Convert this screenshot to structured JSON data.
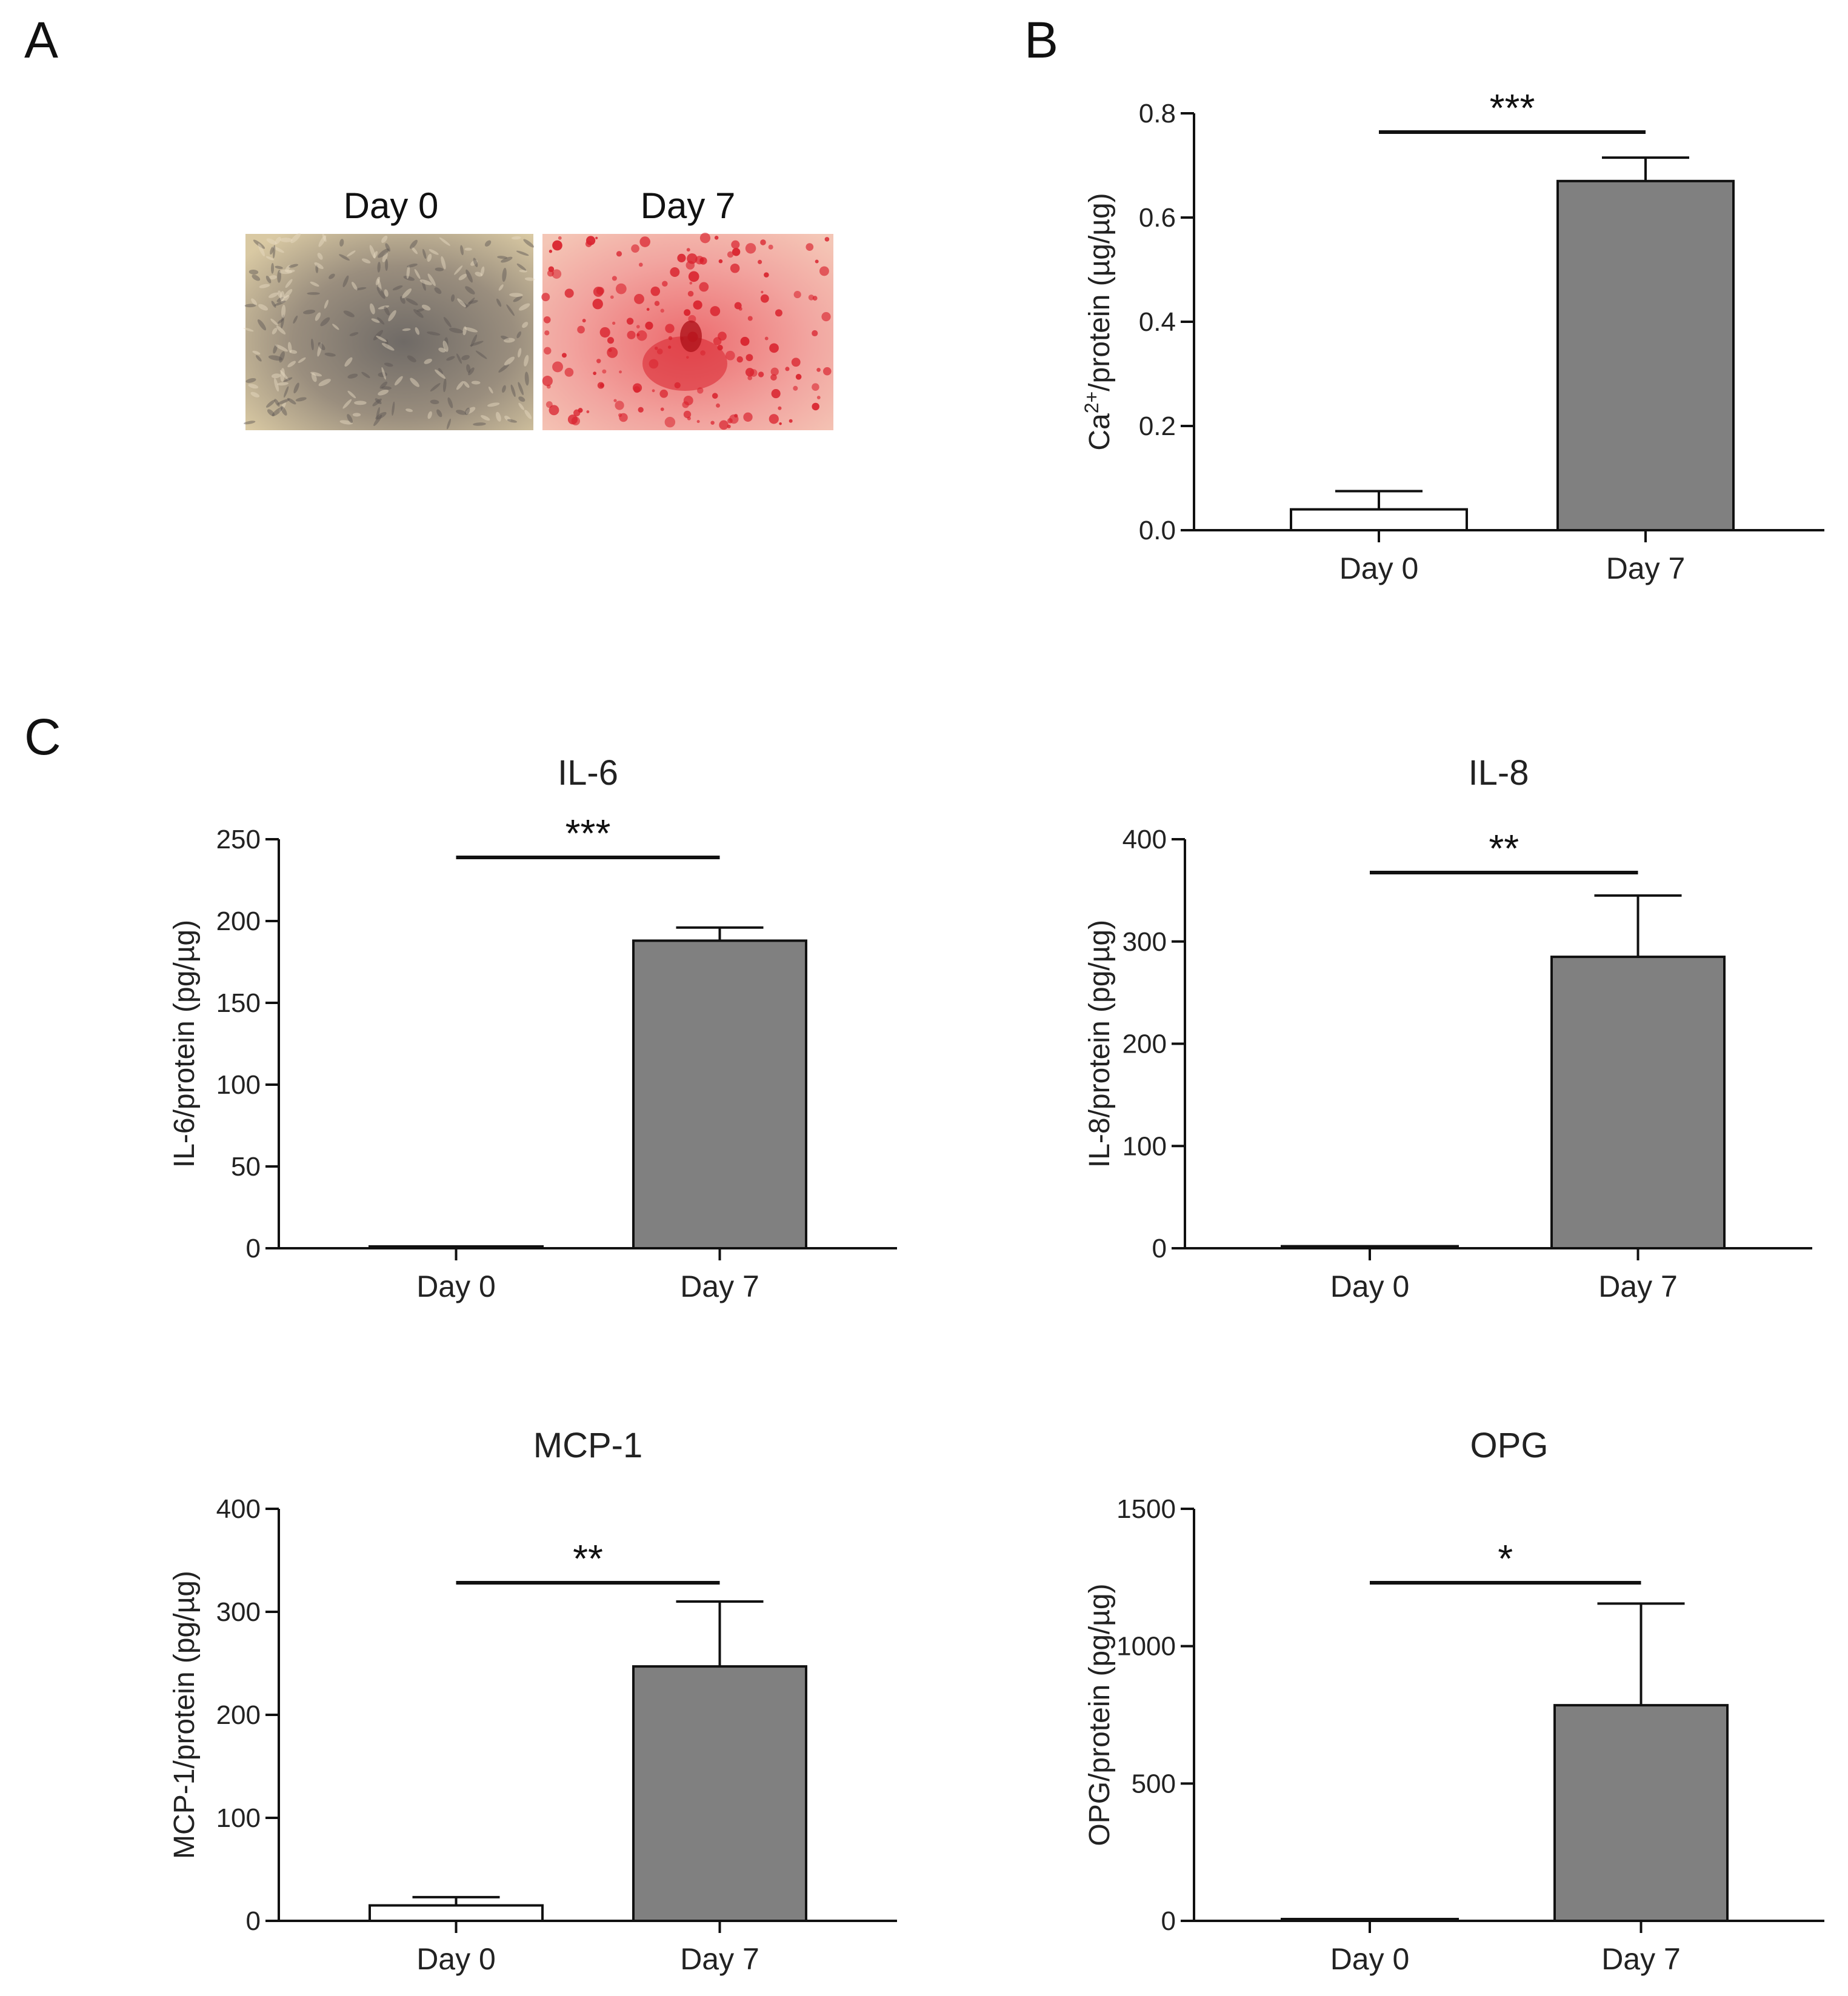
{
  "panels": {
    "a": {
      "letter": "A",
      "label_left": "Day 0",
      "label_right": "Day 7"
    },
    "b": {
      "letter": "B"
    },
    "c": {
      "letter": "C"
    }
  },
  "colors": {
    "day0_fill": "#ffffff",
    "day7_fill": "#808080",
    "stroke": "#111111",
    "stain_red": "#d9232e",
    "plate_beige": "#c8b89a"
  },
  "chart_data": [
    {
      "id": "ca",
      "type": "bar",
      "title": "",
      "ylabel_main": "Ca",
      "ylabel_sup": "2+",
      "ylabel_rest": "/protein (µg/µg)",
      "categories": [
        "Day 0",
        "Day 7"
      ],
      "values": [
        0.04,
        0.67
      ],
      "errors": [
        0.035,
        0.045
      ],
      "ylim": [
        0,
        0.8
      ],
      "yticks": [
        "0.0",
        "0.2",
        "0.4",
        "0.6",
        "0.8"
      ],
      "significance": "***"
    },
    {
      "id": "il6",
      "type": "bar",
      "title": "IL-6",
      "ylabel": "IL-6/protein (pg/µg)",
      "categories": [
        "Day 0",
        "Day 7"
      ],
      "values": [
        0,
        188
      ],
      "errors": [
        0,
        8
      ],
      "ylim": [
        0,
        250
      ],
      "yticks": [
        "0",
        "50",
        "100",
        "150",
        "200",
        "250"
      ],
      "significance": "***"
    },
    {
      "id": "il8",
      "type": "bar",
      "title": "IL-8",
      "ylabel": "IL-8/protein (pg/µg)",
      "categories": [
        "Day 0",
        "Day 7"
      ],
      "values": [
        2,
        285
      ],
      "errors": [
        0,
        60
      ],
      "ylim": [
        0,
        400
      ],
      "yticks": [
        "0",
        "100",
        "200",
        "300",
        "400"
      ],
      "significance": "**"
    },
    {
      "id": "mcp1",
      "type": "bar",
      "title": "MCP-1",
      "ylabel": "MCP-1/protein (pg/µg)",
      "categories": [
        "Day 0",
        "Day 7"
      ],
      "values": [
        15,
        247
      ],
      "errors": [
        8,
        63
      ],
      "ylim": [
        0,
        400
      ],
      "yticks": [
        "0",
        "100",
        "200",
        "300",
        "400"
      ],
      "significance": "**"
    },
    {
      "id": "opg",
      "type": "bar",
      "title": "OPG",
      "ylabel": "OPG/protein (pg/µg)",
      "categories": [
        "Day 0",
        "Day 7"
      ],
      "values": [
        0,
        785
      ],
      "errors": [
        0,
        370
      ],
      "ylim": [
        0,
        1500
      ],
      "yticks": [
        "0",
        "500",
        "1000",
        "1500"
      ],
      "significance": "*"
    }
  ]
}
